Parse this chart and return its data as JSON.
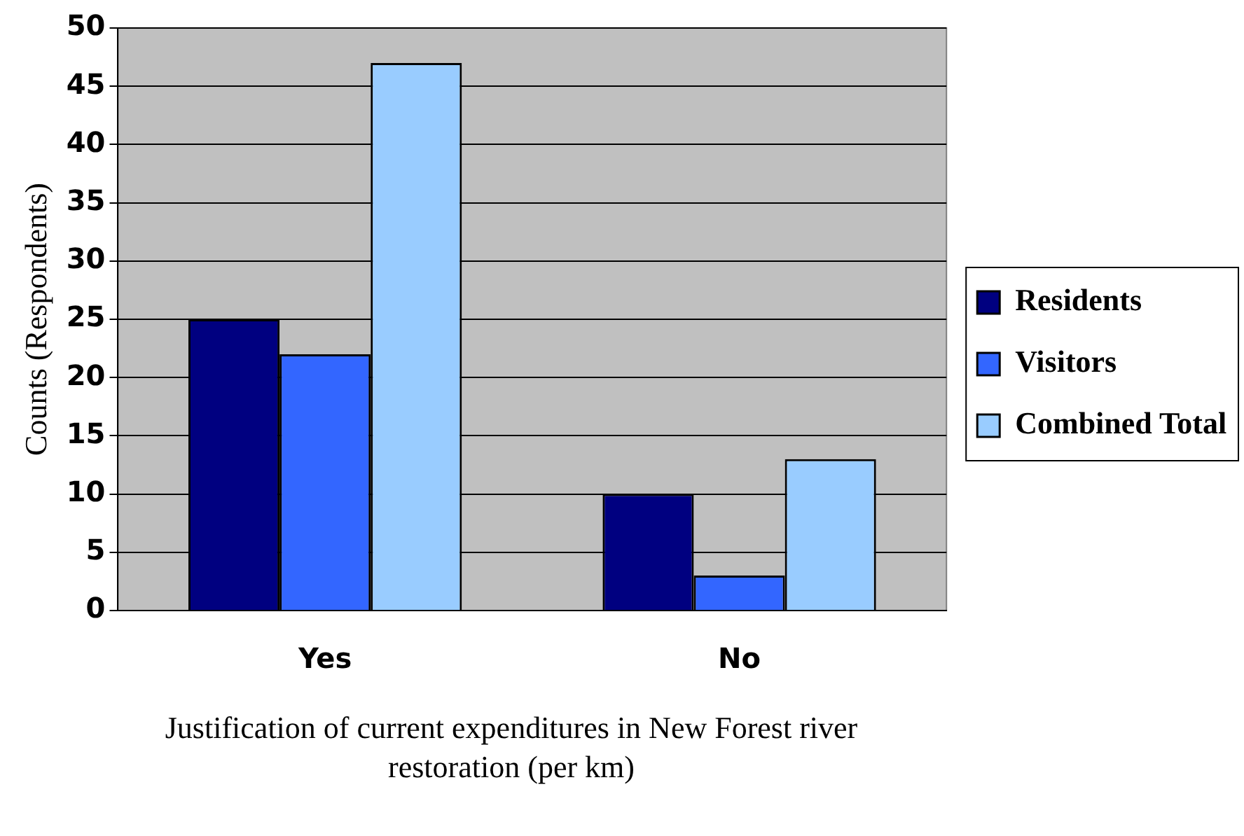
{
  "chart_data": {
    "type": "bar",
    "xlabel": "Justification of current expenditures in New Forest river restoration (per km)",
    "ylabel": "Counts (Respondents)",
    "categories": [
      "Yes",
      "No"
    ],
    "series": [
      {
        "name": "Residents",
        "color": "#000080",
        "values": [
          25,
          10
        ]
      },
      {
        "name": "Visitors",
        "color": "#3366ff",
        "values": [
          22,
          3
        ]
      },
      {
        "name": "Combined Total",
        "color": "#99ccff",
        "values": [
          47,
          13
        ]
      }
    ],
    "ylim": [
      0,
      50
    ],
    "yticks": [
      0,
      5,
      10,
      15,
      20,
      25,
      30,
      35,
      40,
      45,
      50
    ],
    "grid": "y",
    "legend": "right"
  }
}
